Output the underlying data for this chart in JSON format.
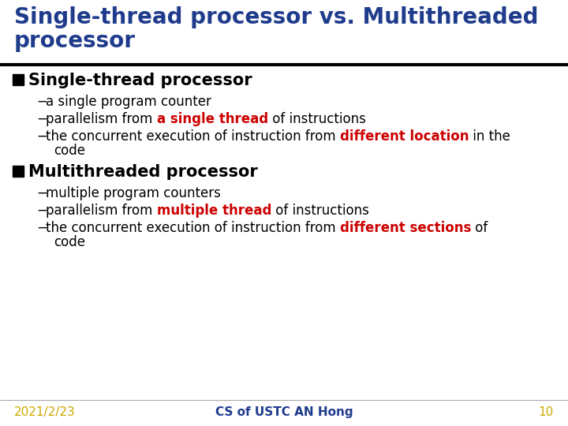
{
  "title_line1": "Single-thread processor vs. Multithreaded",
  "title_line2": "processor",
  "title_color": "#1F3B8C",
  "title_fontsize": 20,
  "bg_color": "#FFFFFF",
  "section1_header": "Single-thread processor",
  "section2_header": "Multithreaded processor",
  "section_header_color": "#000000",
  "section_header_fontsize": 15,
  "bullet_color": "#000000",
  "bullet_fontsize": 12,
  "red_color": "#CC0000",
  "footer_date": "2021/2/23",
  "footer_center": "CS of USTC AN Hong",
  "footer_page": "10",
  "footer_date_color": "#CCAA00",
  "footer_center_color": "#1F3B8C",
  "footer_page_color": "#CCAA00",
  "footer_fontsize": 11,
  "section1_bullets": [
    [
      {
        "text": "a single program counter",
        "color": "#000000",
        "bold": false
      }
    ],
    [
      {
        "text": "parallelism from ",
        "color": "#000000",
        "bold": false
      },
      {
        "text": "a single thread",
        "color": "#CC0000",
        "bold": true
      },
      {
        "text": " of instructions",
        "color": "#000000",
        "bold": false
      }
    ],
    [
      {
        "text": "the concurrent execution of instruction from ",
        "color": "#000000",
        "bold": false
      },
      {
        "text": "different location",
        "color": "#CC0000",
        "bold": true
      },
      {
        "text": " in the",
        "color": "#000000",
        "bold": false
      }
    ],
    [
      {
        "text": "code",
        "color": "#000000",
        "bold": false
      }
    ]
  ],
  "section2_bullets": [
    [
      {
        "text": "multiple program counters",
        "color": "#000000",
        "bold": false
      }
    ],
    [
      {
        "text": "parallelism from ",
        "color": "#000000",
        "bold": false
      },
      {
        "text": "multiple thread",
        "color": "#CC0000",
        "bold": true
      },
      {
        "text": " of instructions",
        "color": "#000000",
        "bold": false
      }
    ],
    [
      {
        "text": "the concurrent execution of instruction from ",
        "color": "#000000",
        "bold": false
      },
      {
        "text": "different sections",
        "color": "#CC0000",
        "bold": true
      },
      {
        "text": " of",
        "color": "#000000",
        "bold": false
      }
    ],
    [
      {
        "text": "code",
        "color": "#000000",
        "bold": false
      }
    ]
  ]
}
